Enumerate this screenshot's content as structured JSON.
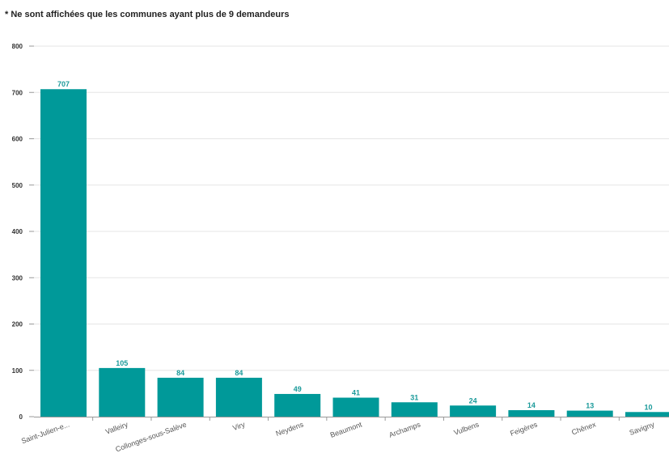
{
  "note": "* Ne sont affichées que les communes ayant plus de 9 demandeurs",
  "colors": {
    "bar": "#009999",
    "label": "#1a9a9a"
  },
  "chart_data": {
    "type": "bar",
    "categories": [
      "Saint-Julien-e...",
      "Valleiry",
      "Collonges-sous-Salève",
      "Viry",
      "Neydens",
      "Beaumont",
      "Archamps",
      "Vulbens",
      "Feigères",
      "Chênex",
      "Savigny"
    ],
    "values": [
      707,
      105,
      84,
      84,
      49,
      41,
      31,
      24,
      14,
      13,
      10
    ],
    "yticks": [
      0,
      100,
      200,
      300,
      400,
      500,
      600,
      700,
      800
    ],
    "ylim": [
      0,
      800
    ],
    "title": "",
    "xlabel": "",
    "ylabel": "",
    "grid": true,
    "data_labels": true
  }
}
